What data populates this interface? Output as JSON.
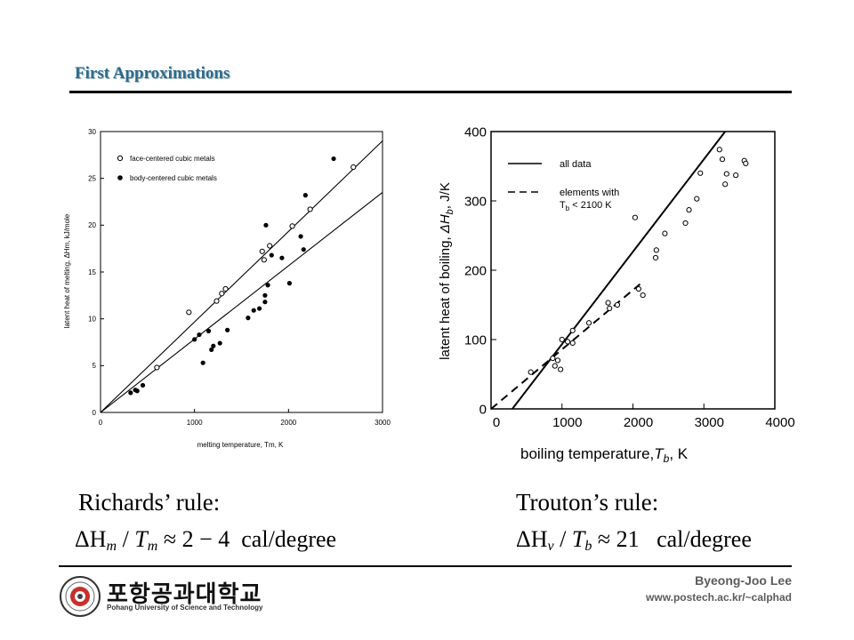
{
  "slide": {
    "title": "First Approximations",
    "author": "Byeong-Joo Lee",
    "url": "www.postech.ac.kr/~calphad",
    "logo_text": "포항공과대학교",
    "logo_subtitle": "Pohang University of Science and Technology"
  },
  "rules": {
    "richards_label": "Richards’ rule:",
    "richards_equation": "ΔHm / Tm ≈ 2 − 4 cal/degree",
    "trouton_label": "Trouton’s rule:",
    "trouton_equation": "ΔHv / Tb ≈ 21 cal/degree"
  },
  "chart_data": [
    {
      "type": "scatter",
      "xlabel": "melting temperature, Tm, K",
      "ylabel": "latent heat of melting, ΔHm, kJ/mole",
      "xlim": [
        0,
        3000
      ],
      "ylim": [
        0,
        30
      ],
      "xticks": [
        0,
        1000,
        2000,
        3000
      ],
      "yticks": [
        0,
        5,
        10,
        15,
        20,
        25,
        30
      ],
      "legend_position": "top-left",
      "series": [
        {
          "name": "face-centered cubic metals",
          "marker": "open-circle",
          "points": [
            [
              600,
              4.8
            ],
            [
              940,
              10.7
            ],
            [
              1235,
              11.9
            ],
            [
              1290,
              12.7
            ],
            [
              1330,
              13.2
            ],
            [
              1720,
              17.2
            ],
            [
              1740,
              16.3
            ],
            [
              1800,
              17.8
            ],
            [
              2040,
              19.9
            ],
            [
              2230,
              21.7
            ],
            [
              2690,
              26.2
            ]
          ]
        },
        {
          "name": "body-centered cubic metals",
          "marker": "filled-circle",
          "points": [
            [
              320,
              2.1
            ],
            [
              370,
              2.4
            ],
            [
              390,
              2.3
            ],
            [
              450,
              2.9
            ],
            [
              1000,
              7.8
            ],
            [
              1050,
              8.3
            ],
            [
              1090,
              5.3
            ],
            [
              1150,
              8.7
            ],
            [
              1180,
              6.7
            ],
            [
              1200,
              7.1
            ],
            [
              1270,
              7.4
            ],
            [
              1350,
              8.8
            ],
            [
              1570,
              10.1
            ],
            [
              1630,
              10.9
            ],
            [
              1690,
              11.1
            ],
            [
              1750,
              11.8
            ],
            [
              1750,
              12.5
            ],
            [
              1760,
              20.0
            ],
            [
              1780,
              13.6
            ],
            [
              1820,
              16.8
            ],
            [
              1930,
              16.5
            ],
            [
              2010,
              13.8
            ],
            [
              2130,
              18.8
            ],
            [
              2160,
              17.4
            ],
            [
              2180,
              23.2
            ],
            [
              2480,
              27.1
            ]
          ]
        }
      ],
      "lines": [
        {
          "name": "fcc fit",
          "x": [
            0,
            3000
          ],
          "y": [
            0,
            29.0
          ]
        },
        {
          "name": "bcc fit",
          "x": [
            0,
            3000
          ],
          "y": [
            0,
            23.5
          ]
        }
      ]
    },
    {
      "type": "scatter",
      "xlabel": "boiling temperature, Tb, K",
      "ylabel": "latent heat of boiling, ΔHb, J/K",
      "xlim": [
        0,
        4000
      ],
      "ylim": [
        0,
        400
      ],
      "xticks": [
        0,
        1000,
        2000,
        3000,
        4000
      ],
      "yticks": [
        0,
        100,
        200,
        300,
        400
      ],
      "legend_position": "top-left",
      "series": [
        {
          "name": "data",
          "marker": "open-circle",
          "points": [
            [
              560,
              53
            ],
            [
              870,
              73
            ],
            [
              900,
              62
            ],
            [
              940,
              70
            ],
            [
              980,
              57
            ],
            [
              1000,
              100
            ],
            [
              1080,
              97
            ],
            [
              1150,
              95
            ],
            [
              1150,
              113
            ],
            [
              1380,
              124
            ],
            [
              1650,
              153
            ],
            [
              1670,
              145
            ],
            [
              1780,
              150
            ],
            [
              2030,
              276
            ],
            [
              2080,
              173
            ],
            [
              2140,
              164
            ],
            [
              2320,
              218
            ],
            [
              2330,
              229
            ],
            [
              2450,
              253
            ],
            [
              2740,
              268
            ],
            [
              2790,
              287
            ],
            [
              2900,
              303
            ],
            [
              2950,
              340
            ],
            [
              3220,
              374
            ],
            [
              3260,
              360
            ],
            [
              3300,
              324
            ],
            [
              3320,
              339
            ],
            [
              3450,
              337
            ],
            [
              3570,
              358
            ],
            [
              3590,
              354
            ]
          ]
        }
      ],
      "lines": [
        {
          "name": "all data",
          "style": "solid",
          "x": [
            300,
            3300
          ],
          "y": [
            0,
            400
          ]
        },
        {
          "name": "elements with Tb < 2100 K",
          "style": "dashed",
          "x": [
            0,
            2100
          ],
          "y": [
            0,
            180
          ]
        }
      ]
    }
  ]
}
